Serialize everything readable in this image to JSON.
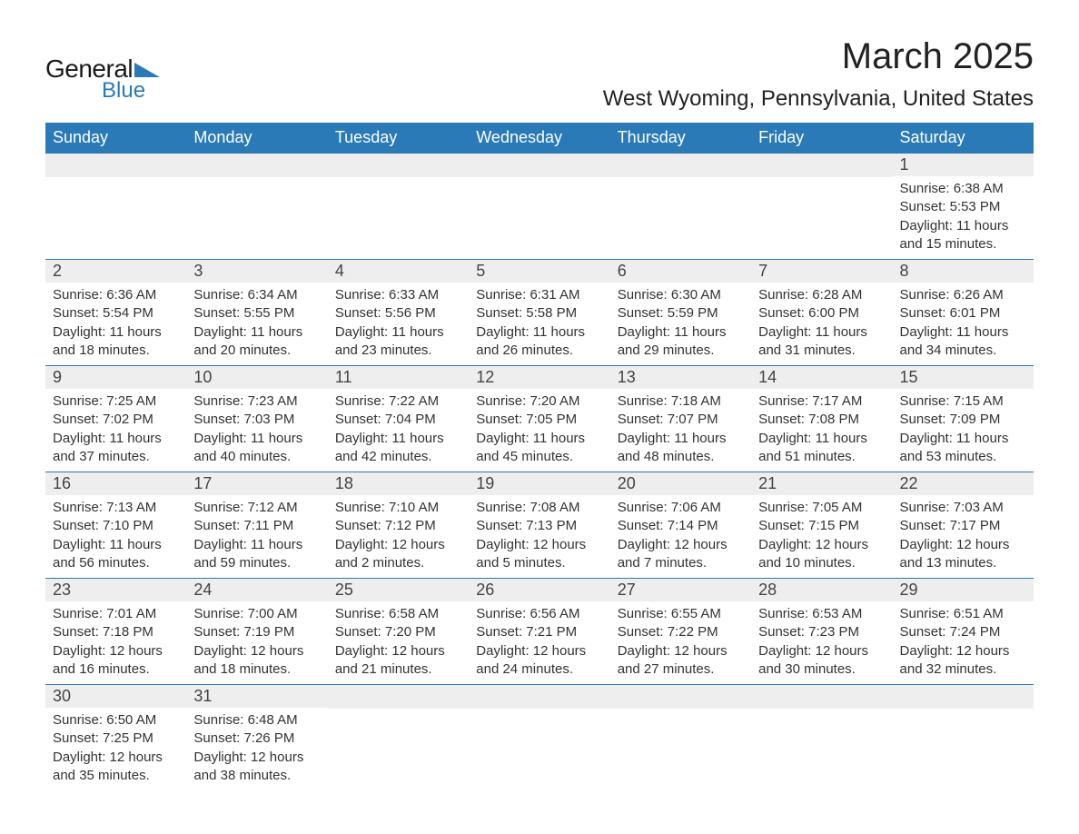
{
  "logo": {
    "text1": "General",
    "text2": "Blue",
    "triangle_color": "#2a7ab8"
  },
  "title": "March 2025",
  "location": "West Wyoming, Pennsylvania, United States",
  "colors": {
    "header_bg": "#2a7ab8",
    "header_text": "#ffffff",
    "daynum_bg": "#eeeeee",
    "row_border": "#2a7ab8",
    "body_text": "#333333"
  },
  "weekdays": [
    "Sunday",
    "Monday",
    "Tuesday",
    "Wednesday",
    "Thursday",
    "Friday",
    "Saturday"
  ],
  "weeks": [
    [
      null,
      null,
      null,
      null,
      null,
      null,
      {
        "n": "1",
        "sr": "Sunrise: 6:38 AM",
        "ss": "Sunset: 5:53 PM",
        "d1": "Daylight: 11 hours",
        "d2": "and 15 minutes."
      }
    ],
    [
      {
        "n": "2",
        "sr": "Sunrise: 6:36 AM",
        "ss": "Sunset: 5:54 PM",
        "d1": "Daylight: 11 hours",
        "d2": "and 18 minutes."
      },
      {
        "n": "3",
        "sr": "Sunrise: 6:34 AM",
        "ss": "Sunset: 5:55 PM",
        "d1": "Daylight: 11 hours",
        "d2": "and 20 minutes."
      },
      {
        "n": "4",
        "sr": "Sunrise: 6:33 AM",
        "ss": "Sunset: 5:56 PM",
        "d1": "Daylight: 11 hours",
        "d2": "and 23 minutes."
      },
      {
        "n": "5",
        "sr": "Sunrise: 6:31 AM",
        "ss": "Sunset: 5:58 PM",
        "d1": "Daylight: 11 hours",
        "d2": "and 26 minutes."
      },
      {
        "n": "6",
        "sr": "Sunrise: 6:30 AM",
        "ss": "Sunset: 5:59 PM",
        "d1": "Daylight: 11 hours",
        "d2": "and 29 minutes."
      },
      {
        "n": "7",
        "sr": "Sunrise: 6:28 AM",
        "ss": "Sunset: 6:00 PM",
        "d1": "Daylight: 11 hours",
        "d2": "and 31 minutes."
      },
      {
        "n": "8",
        "sr": "Sunrise: 6:26 AM",
        "ss": "Sunset: 6:01 PM",
        "d1": "Daylight: 11 hours",
        "d2": "and 34 minutes."
      }
    ],
    [
      {
        "n": "9",
        "sr": "Sunrise: 7:25 AM",
        "ss": "Sunset: 7:02 PM",
        "d1": "Daylight: 11 hours",
        "d2": "and 37 minutes."
      },
      {
        "n": "10",
        "sr": "Sunrise: 7:23 AM",
        "ss": "Sunset: 7:03 PM",
        "d1": "Daylight: 11 hours",
        "d2": "and 40 minutes."
      },
      {
        "n": "11",
        "sr": "Sunrise: 7:22 AM",
        "ss": "Sunset: 7:04 PM",
        "d1": "Daylight: 11 hours",
        "d2": "and 42 minutes."
      },
      {
        "n": "12",
        "sr": "Sunrise: 7:20 AM",
        "ss": "Sunset: 7:05 PM",
        "d1": "Daylight: 11 hours",
        "d2": "and 45 minutes."
      },
      {
        "n": "13",
        "sr": "Sunrise: 7:18 AM",
        "ss": "Sunset: 7:07 PM",
        "d1": "Daylight: 11 hours",
        "d2": "and 48 minutes."
      },
      {
        "n": "14",
        "sr": "Sunrise: 7:17 AM",
        "ss": "Sunset: 7:08 PM",
        "d1": "Daylight: 11 hours",
        "d2": "and 51 minutes."
      },
      {
        "n": "15",
        "sr": "Sunrise: 7:15 AM",
        "ss": "Sunset: 7:09 PM",
        "d1": "Daylight: 11 hours",
        "d2": "and 53 minutes."
      }
    ],
    [
      {
        "n": "16",
        "sr": "Sunrise: 7:13 AM",
        "ss": "Sunset: 7:10 PM",
        "d1": "Daylight: 11 hours",
        "d2": "and 56 minutes."
      },
      {
        "n": "17",
        "sr": "Sunrise: 7:12 AM",
        "ss": "Sunset: 7:11 PM",
        "d1": "Daylight: 11 hours",
        "d2": "and 59 minutes."
      },
      {
        "n": "18",
        "sr": "Sunrise: 7:10 AM",
        "ss": "Sunset: 7:12 PM",
        "d1": "Daylight: 12 hours",
        "d2": "and 2 minutes."
      },
      {
        "n": "19",
        "sr": "Sunrise: 7:08 AM",
        "ss": "Sunset: 7:13 PM",
        "d1": "Daylight: 12 hours",
        "d2": "and 5 minutes."
      },
      {
        "n": "20",
        "sr": "Sunrise: 7:06 AM",
        "ss": "Sunset: 7:14 PM",
        "d1": "Daylight: 12 hours",
        "d2": "and 7 minutes."
      },
      {
        "n": "21",
        "sr": "Sunrise: 7:05 AM",
        "ss": "Sunset: 7:15 PM",
        "d1": "Daylight: 12 hours",
        "d2": "and 10 minutes."
      },
      {
        "n": "22",
        "sr": "Sunrise: 7:03 AM",
        "ss": "Sunset: 7:17 PM",
        "d1": "Daylight: 12 hours",
        "d2": "and 13 minutes."
      }
    ],
    [
      {
        "n": "23",
        "sr": "Sunrise: 7:01 AM",
        "ss": "Sunset: 7:18 PM",
        "d1": "Daylight: 12 hours",
        "d2": "and 16 minutes."
      },
      {
        "n": "24",
        "sr": "Sunrise: 7:00 AM",
        "ss": "Sunset: 7:19 PM",
        "d1": "Daylight: 12 hours",
        "d2": "and 18 minutes."
      },
      {
        "n": "25",
        "sr": "Sunrise: 6:58 AM",
        "ss": "Sunset: 7:20 PM",
        "d1": "Daylight: 12 hours",
        "d2": "and 21 minutes."
      },
      {
        "n": "26",
        "sr": "Sunrise: 6:56 AM",
        "ss": "Sunset: 7:21 PM",
        "d1": "Daylight: 12 hours",
        "d2": "and 24 minutes."
      },
      {
        "n": "27",
        "sr": "Sunrise: 6:55 AM",
        "ss": "Sunset: 7:22 PM",
        "d1": "Daylight: 12 hours",
        "d2": "and 27 minutes."
      },
      {
        "n": "28",
        "sr": "Sunrise: 6:53 AM",
        "ss": "Sunset: 7:23 PM",
        "d1": "Daylight: 12 hours",
        "d2": "and 30 minutes."
      },
      {
        "n": "29",
        "sr": "Sunrise: 6:51 AM",
        "ss": "Sunset: 7:24 PM",
        "d1": "Daylight: 12 hours",
        "d2": "and 32 minutes."
      }
    ],
    [
      {
        "n": "30",
        "sr": "Sunrise: 6:50 AM",
        "ss": "Sunset: 7:25 PM",
        "d1": "Daylight: 12 hours",
        "d2": "and 35 minutes."
      },
      {
        "n": "31",
        "sr": "Sunrise: 6:48 AM",
        "ss": "Sunset: 7:26 PM",
        "d1": "Daylight: 12 hours",
        "d2": "and 38 minutes."
      },
      null,
      null,
      null,
      null,
      null
    ]
  ]
}
